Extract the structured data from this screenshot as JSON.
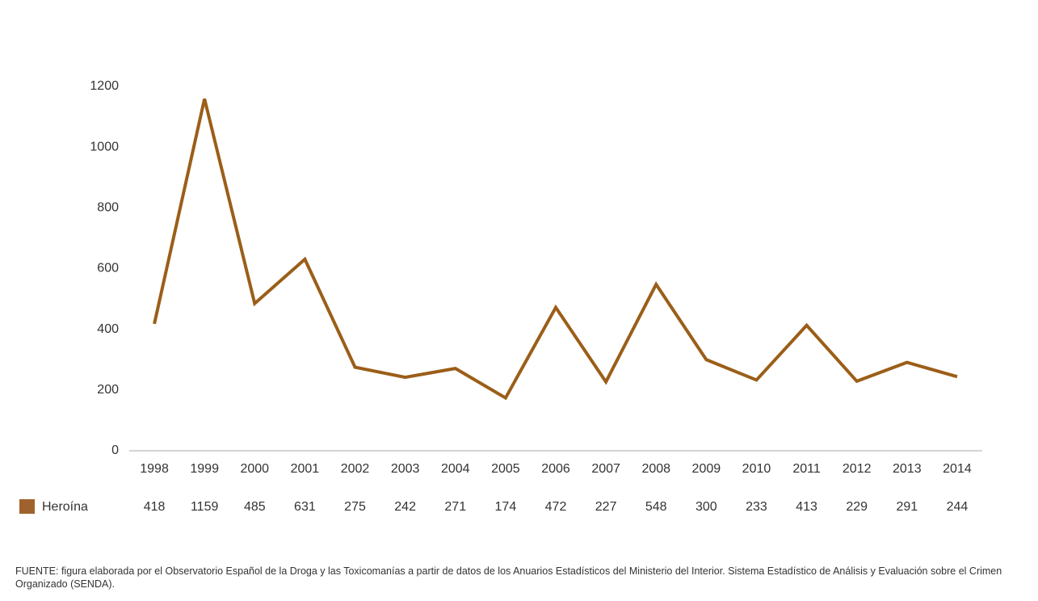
{
  "chart_data": {
    "type": "line",
    "categories": [
      "1998",
      "1999",
      "2000",
      "2001",
      "2002",
      "2003",
      "2004",
      "2005",
      "2006",
      "2007",
      "2008",
      "2009",
      "2010",
      "2011",
      "2012",
      "2013",
      "2014"
    ],
    "series": [
      {
        "name": "Heroína",
        "color": "#9b5e18",
        "legend_color": "#a0622d",
        "values": [
          418,
          1159,
          485,
          631,
          275,
          242,
          271,
          174,
          472,
          227,
          548,
          300,
          233,
          413,
          229,
          291,
          244
        ]
      }
    ],
    "ylim": [
      0,
      1200
    ],
    "yticks": [
      0,
      200,
      400,
      600,
      800,
      1000,
      1200
    ],
    "grid": false,
    "source": "FUENTE: figura elaborada por el Observatorio Español de la Droga y las Toxicomanías a partir de datos de los Anuarios Estadísticos del Ministerio del Interior. Sistema Estadístico de Análisis y Evaluación sobre el Crimen Organizado (SENDA)."
  }
}
